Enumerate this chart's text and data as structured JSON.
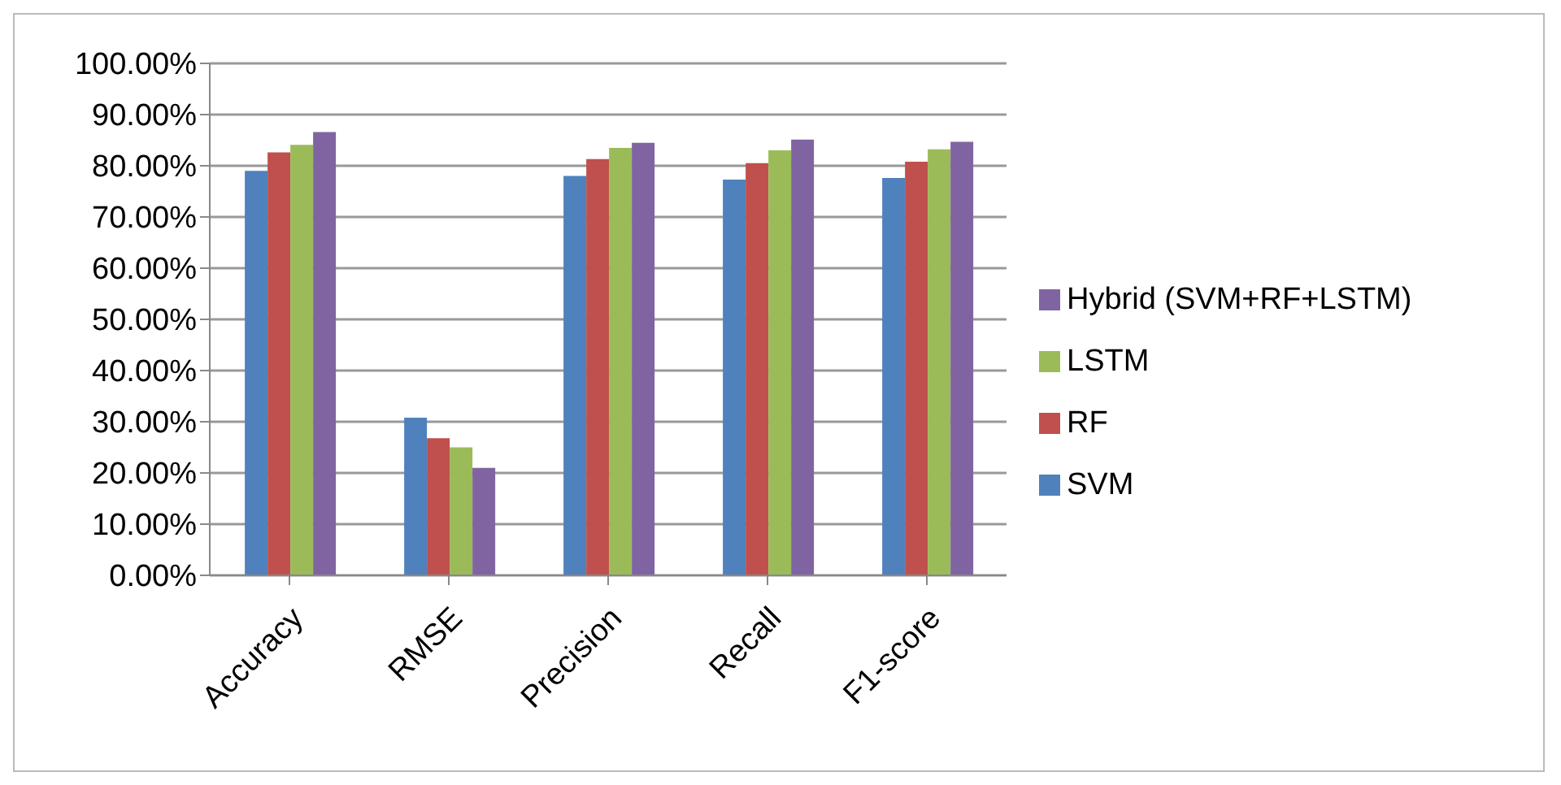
{
  "chart_data": {
    "type": "bar",
    "categories": [
      "Accuracy",
      "RMSE",
      "Precision",
      "Recall",
      "F1-score"
    ],
    "series": [
      {
        "name": "SVM",
        "color": "#4f81bd",
        "values": [
          79.0,
          30.8,
          78.0,
          77.3,
          77.6
        ]
      },
      {
        "name": "RF",
        "color": "#c0504d",
        "values": [
          82.6,
          26.8,
          81.3,
          80.5,
          80.8
        ]
      },
      {
        "name": "LSTM",
        "color": "#9bbb59",
        "values": [
          84.1,
          25.0,
          83.5,
          83.0,
          83.2
        ]
      },
      {
        "name": "Hybrid (SVM+RF+LSTM)",
        "color": "#8064a2",
        "values": [
          86.6,
          21.0,
          84.5,
          85.1,
          84.7
        ]
      }
    ],
    "ylim": [
      0,
      100
    ],
    "yticks": [
      {
        "value": 0,
        "label": "0.00%"
      },
      {
        "value": 10,
        "label": "10.00%"
      },
      {
        "value": 20,
        "label": "20.00%"
      },
      {
        "value": 30,
        "label": "30.00%"
      },
      {
        "value": 40,
        "label": "40.00%"
      },
      {
        "value": 50,
        "label": "50.00%"
      },
      {
        "value": 60,
        "label": "60.00%"
      },
      {
        "value": 70,
        "label": "70.00%"
      },
      {
        "value": 80,
        "label": "80.00%"
      },
      {
        "value": 90,
        "label": "90.00%"
      },
      {
        "value": 100,
        "label": "100.00%"
      }
    ],
    "grid": "y",
    "legend": "right"
  }
}
